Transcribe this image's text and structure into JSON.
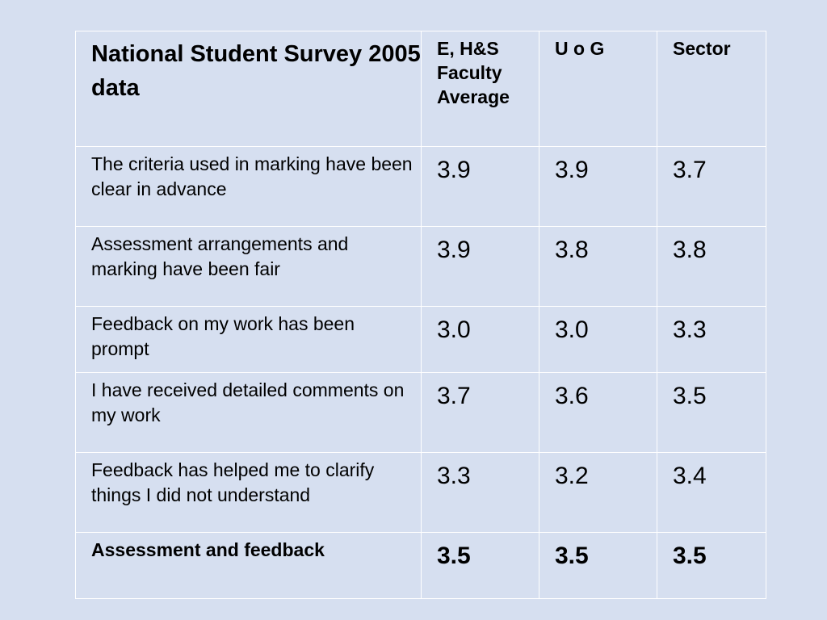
{
  "table": {
    "title": "National Student Survey 2005 data",
    "columns": [
      "E, H&S Faculty Average",
      "U o G",
      "Sector"
    ],
    "rows": [
      {
        "label": "The criteria used in marking have been clear in advance",
        "values": [
          "3.9",
          "3.9",
          "3.7"
        ]
      },
      {
        "label": "Assessment arrangements and marking have been fair",
        "values": [
          "3.9",
          "3.8",
          "3.8"
        ]
      },
      {
        "label": "Feedback on my work has been prompt",
        "values": [
          "3.0",
          "3.0",
          "3.3"
        ]
      },
      {
        "label": "I have received detailed comments on my work",
        "values": [
          "3.7",
          "3.6",
          "3.5"
        ]
      },
      {
        "label": "Feedback has helped me to clarify things I did not understand",
        "values": [
          "3.3",
          "3.2",
          "3.4"
        ]
      },
      {
        "label": "Assessment and feedback",
        "values": [
          "3.5",
          "3.5",
          "3.5"
        ]
      }
    ]
  },
  "colors": {
    "background": "#d6dff0",
    "table_outer_border": "#a8a8a8",
    "cell_border": "#ffffff",
    "text": "#000000"
  }
}
